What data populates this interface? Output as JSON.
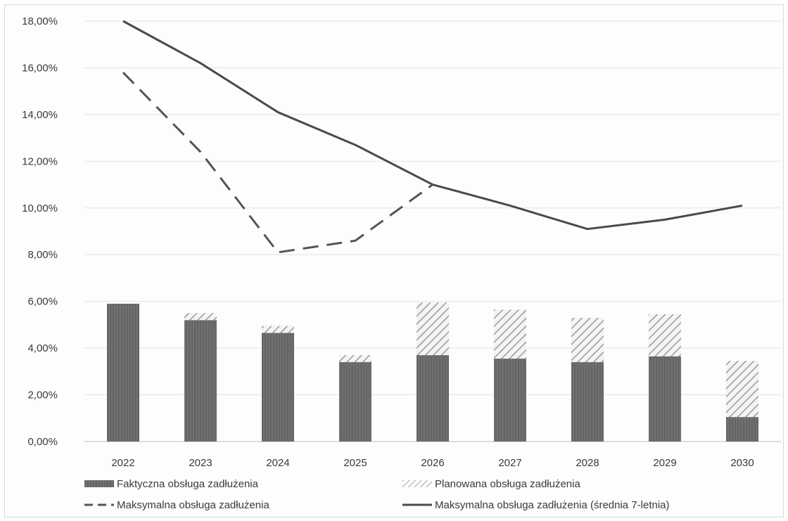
{
  "chart_data": {
    "type": "bar",
    "categories": [
      "2022",
      "2023",
      "2024",
      "2025",
      "2026",
      "2027",
      "2028",
      "2029",
      "2030"
    ],
    "ylim": [
      0,
      0.18
    ],
    "yticks": [
      0,
      0.02,
      0.04,
      0.06,
      0.08,
      0.1,
      0.12,
      0.14,
      0.16,
      0.18
    ],
    "ytick_labels": [
      "0,00%",
      "2,00%",
      "4,00%",
      "6,00%",
      "8,00%",
      "10,00%",
      "12,00%",
      "14,00%",
      "16,00%",
      "18,00%"
    ],
    "grid": true,
    "legend_position": "bottom",
    "series": [
      {
        "name": "Faktyczna obsługa zadłużenia",
        "kind": "bar-stacked",
        "style": "solid",
        "color": "#6e6e6e",
        "values": [
          0.059,
          0.052,
          0.0465,
          0.034,
          0.037,
          0.0355,
          0.034,
          0.0365,
          0.0105
        ]
      },
      {
        "name": "Planowana obsługa zadłużenia",
        "kind": "bar-stacked",
        "style": "hatched",
        "color": "#a9a9a9",
        "values": [
          0.0,
          0.003,
          0.003,
          0.003,
          0.0225,
          0.021,
          0.019,
          0.018,
          0.024
        ]
      },
      {
        "name": "Maksymalna obsługa zadłużenia",
        "kind": "line",
        "style": "dashed",
        "color": "#555555",
        "values": [
          0.158,
          0.124,
          0.081,
          0.086,
          0.11,
          null,
          null,
          null,
          null
        ]
      },
      {
        "name": "Maksymalna obsługa zadłużenia (średnia 7-letnia)",
        "kind": "line",
        "style": "solid",
        "color": "#4a4a4a",
        "values": [
          0.18,
          0.162,
          0.141,
          0.127,
          0.11,
          0.101,
          0.091,
          0.095,
          0.101
        ]
      }
    ],
    "legend": [
      "Faktyczna obsługa zadłużenia",
      "Planowana obsługa zadłużenia",
      "Maksymalna obsługa zadłużenia",
      "Maksymalna obsługa zadłużenia (średnia 7-letnia)"
    ]
  }
}
